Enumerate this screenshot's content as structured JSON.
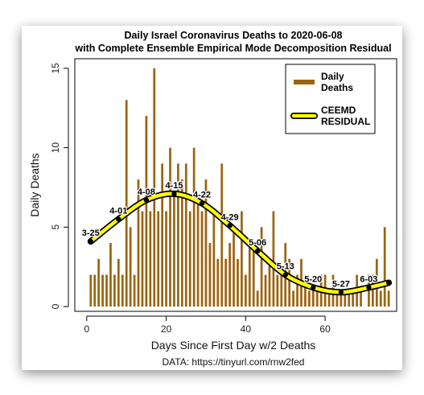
{
  "chart_data": {
    "type": "bar",
    "title": "Daily Israel Coronavirus Deaths to 2020-06-08",
    "subtitle": "with Complete Ensemble Empirical Mode Decomposition Residual",
    "xlabel": "Days Since First Day w/2 Deaths",
    "ylabel": "Daily Deaths",
    "source": "DATA: https://tinyurl.com/rnw2fed",
    "xlim": [
      -3,
      78
    ],
    "ylim": [
      -0.3,
      15.6
    ],
    "xticks": [
      0,
      20,
      40,
      60
    ],
    "yticks": [
      0,
      5,
      10,
      15
    ],
    "grid": false,
    "legend_position": "top-right",
    "colors": {
      "bars": "#9b6410",
      "residual_fill": "#ffff00",
      "residual_edge": "#000000",
      "points": "#000000"
    },
    "legend": [
      {
        "label": "Daily\nDeaths",
        "kind": "bar"
      },
      {
        "label": "CEEMD\nRESIDUAL",
        "kind": "line"
      }
    ],
    "series": [
      {
        "name": "Daily Deaths",
        "x": [
          1,
          2,
          3,
          4,
          5,
          6,
          7,
          8,
          9,
          10,
          11,
          12,
          13,
          14,
          15,
          16,
          17,
          18,
          19,
          20,
          21,
          22,
          23,
          24,
          25,
          26,
          27,
          28,
          29,
          30,
          31,
          32,
          33,
          34,
          35,
          36,
          37,
          38,
          39,
          40,
          41,
          42,
          43,
          44,
          45,
          46,
          47,
          48,
          49,
          50,
          51,
          52,
          53,
          54,
          55,
          56,
          57,
          58,
          59,
          60,
          61,
          62,
          63,
          64,
          65,
          66,
          67,
          68,
          69,
          70,
          71,
          72,
          73,
          74,
          75,
          76
        ],
        "values": [
          2,
          2,
          3,
          2,
          2,
          4,
          2,
          3,
          2,
          13,
          5,
          2,
          8,
          6,
          12,
          6,
          15,
          6,
          9,
          6,
          10,
          7,
          9,
          8,
          9,
          6,
          10,
          7,
          6,
          8,
          4,
          6,
          3,
          9,
          3,
          4,
          5,
          3,
          6,
          2,
          4,
          4,
          1,
          5,
          2,
          3,
          6,
          2,
          2,
          4,
          3,
          1,
          2,
          3,
          2,
          1,
          1,
          1,
          2,
          2,
          1,
          2,
          1,
          1,
          1,
          1,
          1,
          2,
          1,
          0,
          2,
          2,
          3,
          1,
          5,
          1
        ]
      },
      {
        "name": "CEEMD RESIDUAL",
        "x": [
          1,
          8,
          15,
          22,
          29,
          36,
          43,
          50,
          57,
          64,
          71,
          76
        ],
        "values": [
          4.1,
          5.5,
          6.7,
          7.1,
          6.5,
          5.1,
          3.5,
          2.0,
          1.2,
          0.9,
          1.2,
          1.5
        ],
        "point_labels": [
          "3-25",
          "4-01",
          "4-08",
          "4-15",
          "4-22",
          "4-29",
          "5-06",
          "5-13",
          "5-20",
          "5-27",
          "6-03",
          ""
        ]
      }
    ]
  }
}
